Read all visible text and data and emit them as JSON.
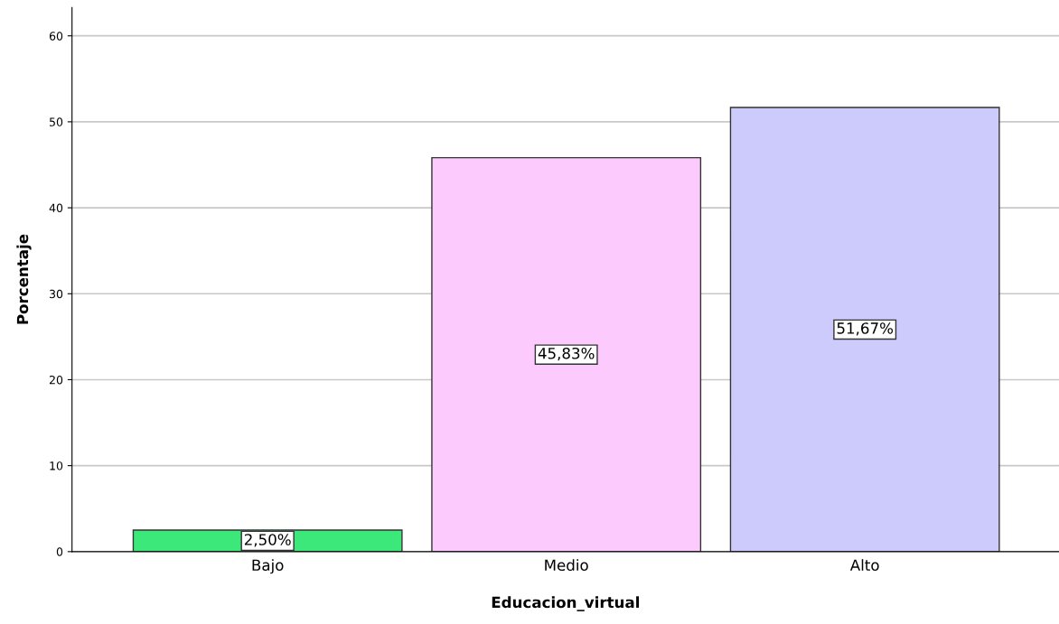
{
  "chart_data": {
    "type": "bar",
    "xlabel": "Educacion_virtual",
    "ylabel": "Porcentaje",
    "categories": [
      "Bajo",
      "Medio",
      "Alto"
    ],
    "values": [
      2.5,
      45.83,
      51.67
    ],
    "colors": [
      "#3de87a",
      "#fccafc",
      "#cccbfc"
    ],
    "value_labels": [
      "2,50%",
      "45,83%",
      "51,67%"
    ],
    "ylim": [
      0,
      63.3
    ],
    "yticks": [
      0,
      10,
      20,
      30,
      40,
      50,
      60
    ],
    "grid": "y"
  }
}
